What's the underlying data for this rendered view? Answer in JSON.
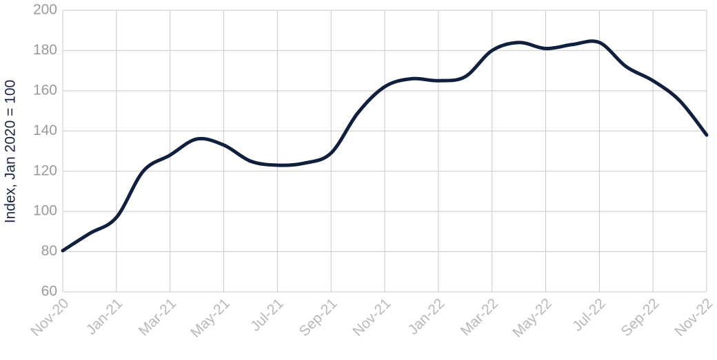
{
  "chart_data": {
    "type": "line",
    "y_label": "Index, Jan 2020 = 100",
    "categories": [
      "Nov-20",
      null,
      "Jan-21",
      null,
      "Mar-21",
      null,
      "May-21",
      null,
      "Jul-21",
      null,
      "Sep-21",
      null,
      "Nov-21",
      null,
      "Jan-22",
      null,
      "Mar-22",
      null,
      "May-22",
      null,
      "Jul-22",
      null,
      "Sep-22",
      null,
      "Nov-22"
    ],
    "series": [
      {
        "name": "Index",
        "color": "#0f1f3d",
        "values": [
          80.5,
          89,
          97,
          120,
          128,
          136,
          133,
          125,
          123,
          124,
          129,
          149,
          162,
          166,
          165,
          167,
          180,
          184,
          181,
          183,
          184,
          172,
          165,
          155,
          138
        ]
      }
    ],
    "ylim": [
      60,
      200
    ],
    "yticks": [
      60,
      80,
      100,
      120,
      140,
      160,
      180,
      200
    ],
    "grid": true
  }
}
